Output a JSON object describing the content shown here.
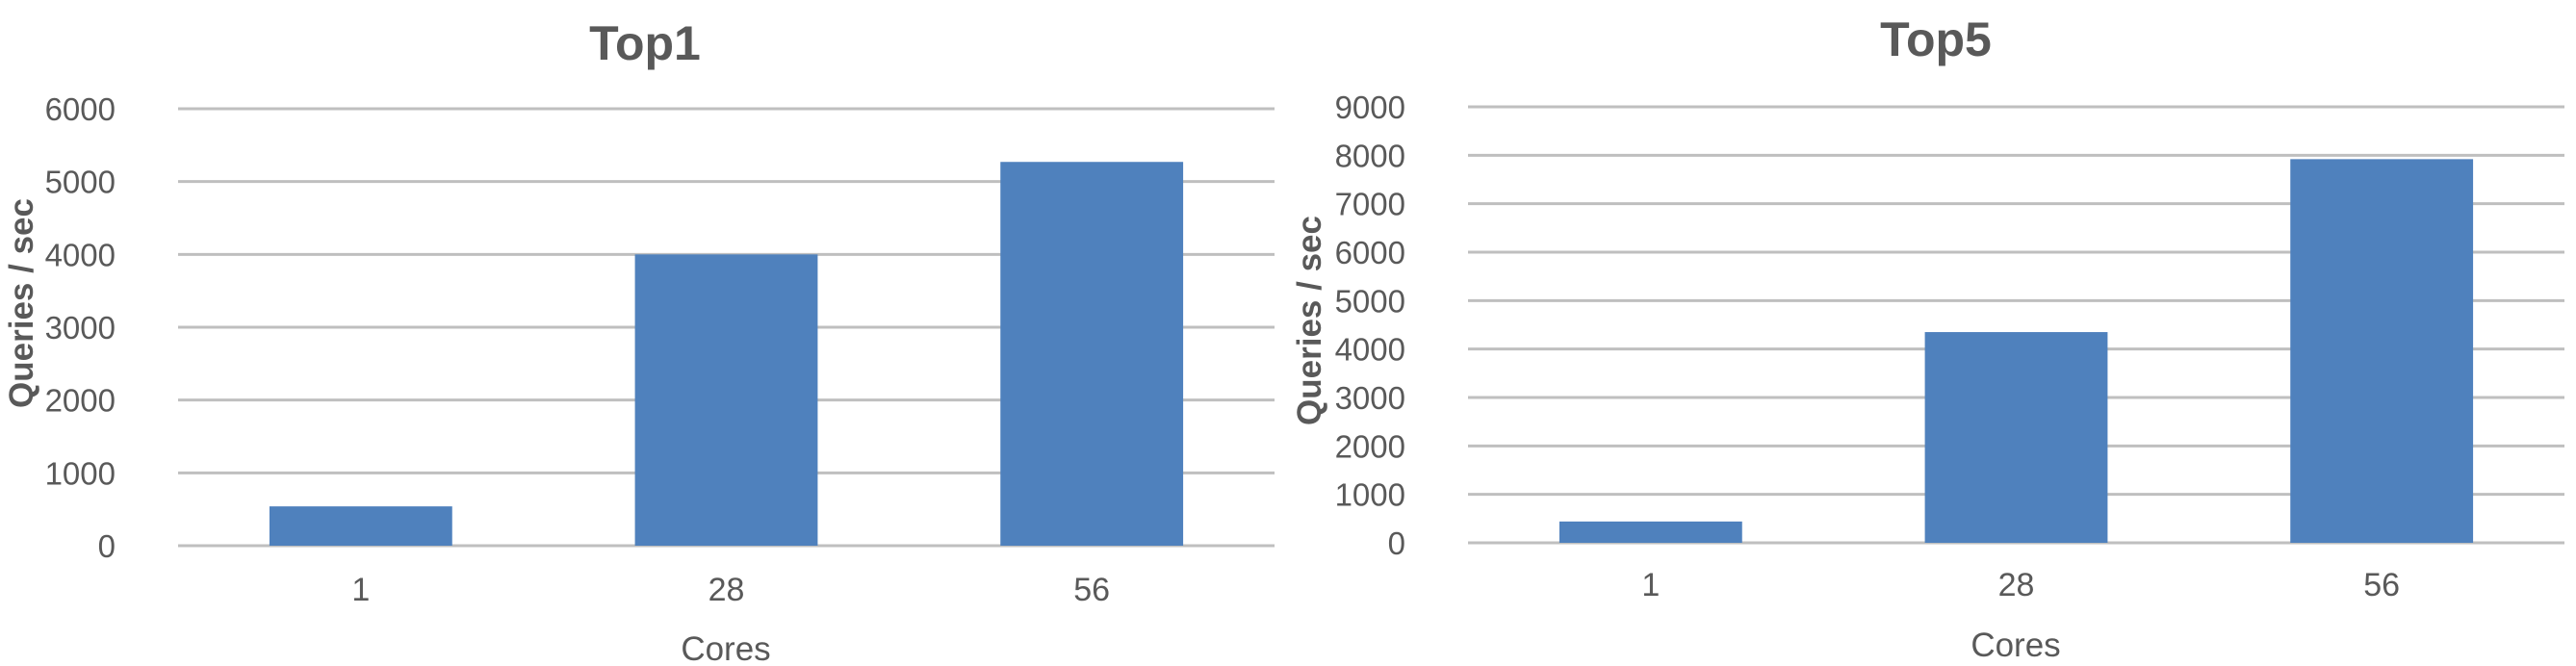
{
  "chart_data": [
    {
      "type": "bar",
      "title": "Top1",
      "xlabel": "Cores",
      "ylabel": "Queries / sec",
      "categories": [
        "1",
        "28",
        "56"
      ],
      "values": [
        540,
        4000,
        5270
      ],
      "ylim": [
        0,
        6000
      ],
      "yticks": [
        "0",
        "1000",
        "2000",
        "3000",
        "4000",
        "5000",
        "6000"
      ],
      "grid": true,
      "bar_color": "#4f81bd"
    },
    {
      "type": "bar",
      "title": "Top5",
      "xlabel": "Cores",
      "ylabel": "Queries / sec",
      "categories": [
        "1",
        "28",
        "56"
      ],
      "values": [
        440,
        4350,
        7920
      ],
      "ylim": [
        0,
        9000
      ],
      "yticks": [
        "0",
        "1000",
        "2000",
        "3000",
        "4000",
        "5000",
        "6000",
        "7000",
        "8000",
        "9000"
      ],
      "grid": true,
      "bar_color": "#4f81bd"
    }
  ]
}
